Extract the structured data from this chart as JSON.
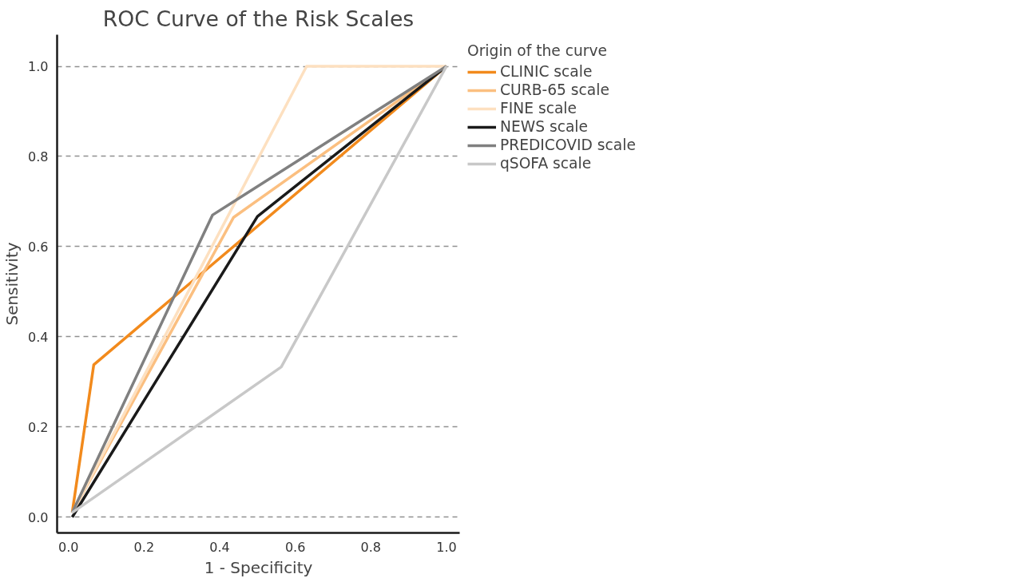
{
  "chart_data": {
    "type": "line",
    "title": "ROC Curve of the Risk Scales",
    "xlabel": "1 - Specificity",
    "ylabel": "Sensitivity",
    "legend_title": "Origin of the curve",
    "legend": "right",
    "grid": "y",
    "line_style": "solid",
    "xlim": [
      -0.03,
      1.035
    ],
    "ylim": [
      -0.035,
      1.07
    ],
    "xticks": [
      {
        "value": 0,
        "label": "0.0"
      },
      {
        "value": 0.2,
        "label": "0.2"
      },
      {
        "value": 0.4,
        "label": "0.4"
      },
      {
        "value": 0.6,
        "label": "0.6"
      },
      {
        "value": 0.8,
        "label": "0.8"
      },
      {
        "value": 1,
        "label": "1.0"
      }
    ],
    "yticks": [
      {
        "value": 0,
        "label": "0.0"
      },
      {
        "value": 0.2,
        "label": "0.2"
      },
      {
        "value": 0.4,
        "label": "0.4"
      },
      {
        "value": 0.6,
        "label": "0.6"
      },
      {
        "value": 0.8,
        "label": "0.8"
      },
      {
        "value": 1,
        "label": "1.0"
      }
    ],
    "series": [
      {
        "name": "CLINIC scale",
        "color": "#f28a1c",
        "x": [
          0.01,
          0.067,
          1
        ],
        "values": [
          0.01,
          0.338,
          1
        ]
      },
      {
        "name": "CURB-65 scale",
        "color": "#fbbf80",
        "x": [
          0.01,
          0.437,
          1
        ],
        "values": [
          0.01,
          0.665,
          1
        ]
      },
      {
        "name": "FINE scale",
        "color": "#fde0c0",
        "x": [
          0.01,
          0.63,
          1
        ],
        "values": [
          0.01,
          1,
          1
        ]
      },
      {
        "name": "NEWS scale",
        "color": "#1a1a1a",
        "x": [
          0.01,
          0.5,
          1
        ],
        "values": [
          0,
          0.667,
          1
        ]
      },
      {
        "name": "PREDICOVID scale",
        "color": "#808080",
        "x": [
          0.01,
          0.381,
          1
        ],
        "values": [
          0.01,
          0.67,
          1
        ]
      },
      {
        "name": "qSOFA scale",
        "color": "#c8c8c8",
        "x": [
          0.01,
          0.563,
          1
        ],
        "values": [
          0.01,
          0.333,
          1
        ]
      }
    ]
  }
}
